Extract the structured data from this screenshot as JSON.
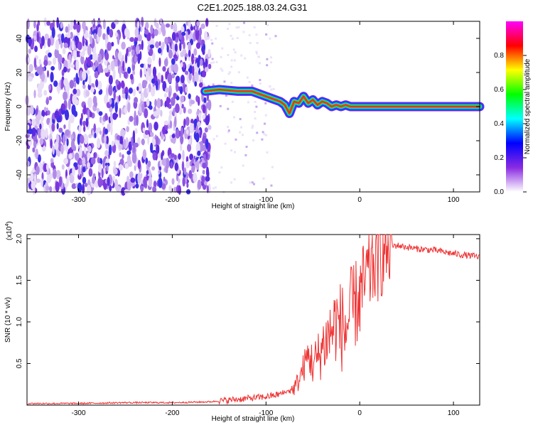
{
  "title": "C2E1.2025.188.03.24.G31",
  "chart_data": [
    {
      "type": "heatmap",
      "xlabel": "Height of straight line (km)",
      "ylabel": "Frequency (Hz)",
      "xlim": [
        -355,
        128
      ],
      "ylim": [
        -50,
        50
      ],
      "xticks": [
        -300,
        -200,
        -100,
        0,
        100
      ],
      "yticks": [
        -40,
        -20,
        0,
        20,
        40
      ],
      "colorbar": {
        "label": "Normalized spectral amplitude",
        "range": [
          0,
          1
        ],
        "ticks": [
          "0.0",
          "0.2",
          "0.4",
          "0.6",
          "0.8"
        ],
        "colors": [
          "#ffffff",
          "#8a2be2",
          "#0000ff",
          "#00ffff",
          "#00ff00",
          "#ffff00",
          "#ff0000",
          "#ff00ff"
        ]
      },
      "signal_track": {
        "description_points_x": [
          -165,
          -150,
          -130,
          -115,
          -105,
          -95,
          -85,
          -80,
          -75,
          -70,
          -65,
          -60,
          -55,
          -50,
          -45,
          -40,
          -35,
          -30,
          -25,
          -20,
          -15,
          -10,
          -5,
          0,
          20,
          60,
          100,
          128
        ],
        "frequency_hz": [
          9,
          10,
          9,
          9,
          7,
          5,
          3,
          1,
          -4,
          3,
          2,
          6,
          2,
          4,
          1,
          3,
          2,
          0,
          1,
          0,
          1,
          0,
          0,
          0,
          0,
          0,
          0,
          0
        ]
      },
      "noise_region_x": [
        -355,
        -160
      ]
    },
    {
      "type": "line",
      "xlabel": "Height of straight line (km)",
      "ylabel": "SNR (10 * v/v)",
      "multiplier_label": "(x10",
      "multiplier_exp": "4",
      "xlim": [
        -355,
        128
      ],
      "ylim": [
        0,
        2.05
      ],
      "xticks": [
        -300,
        -200,
        -100,
        0,
        100
      ],
      "yticks": [
        0.5,
        1.0,
        1.5,
        2.0
      ],
      "color": "#ee3333",
      "x": [
        -355,
        -300,
        -250,
        -200,
        -160,
        -140,
        -120,
        -100,
        -90,
        -80,
        -70,
        -65,
        -60,
        -55,
        -50,
        -45,
        -40,
        -35,
        -30,
        -25,
        -20,
        -15,
        -10,
        -5,
        0,
        5,
        10,
        15,
        20,
        25,
        30,
        40,
        50,
        60,
        80,
        100,
        128
      ],
      "values": [
        0.02,
        0.02,
        0.03,
        0.03,
        0.04,
        0.06,
        0.08,
        0.1,
        0.12,
        0.15,
        0.2,
        0.3,
        0.45,
        0.6,
        0.5,
        0.55,
        0.7,
        0.8,
        0.9,
        1.0,
        0.95,
        0.9,
        1.1,
        1.2,
        1.3,
        1.45,
        1.6,
        1.7,
        1.78,
        1.85,
        1.9,
        1.92,
        1.9,
        1.88,
        1.86,
        1.82,
        1.78
      ]
    }
  ]
}
